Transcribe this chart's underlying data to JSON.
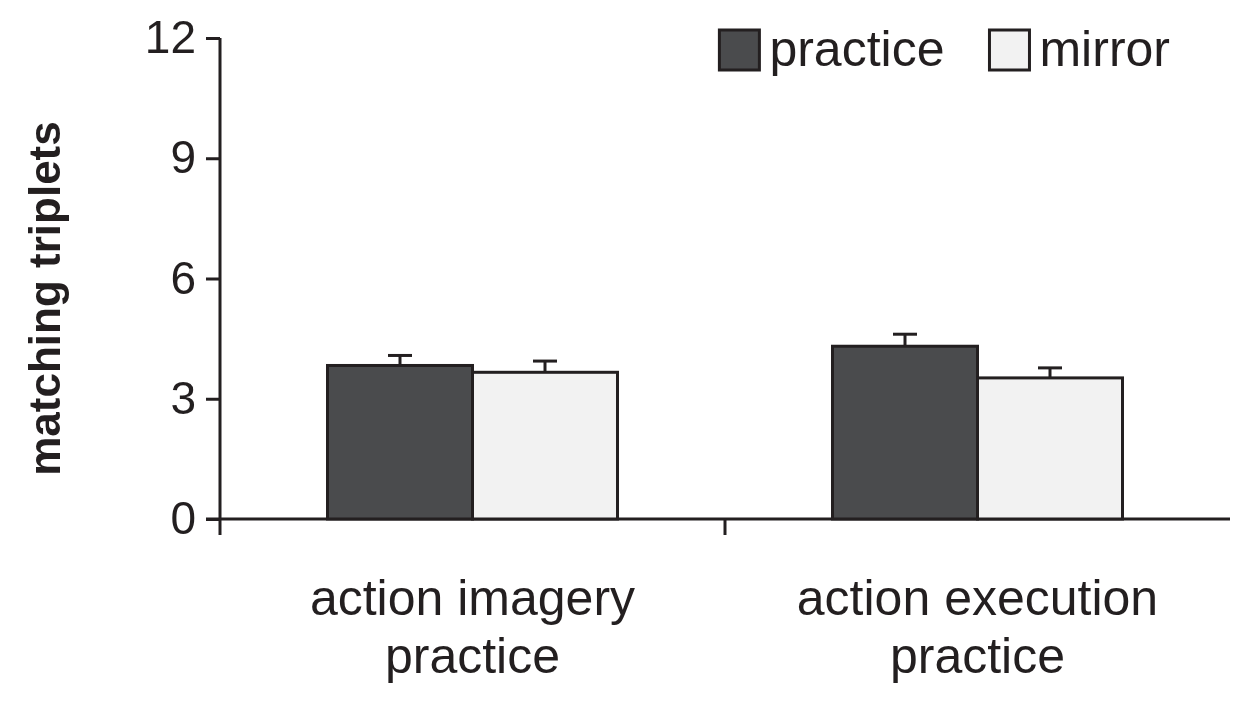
{
  "chart_data": {
    "type": "bar",
    "ylabel": "matching triplets",
    "categories": [
      "action imagery practice",
      "action execution practice"
    ],
    "series": [
      {
        "name": "practice",
        "color": "#4a4b4d",
        "values": [
          3.83,
          4.31
        ],
        "errors": [
          0.25,
          0.3
        ]
      },
      {
        "name": "mirror",
        "color": "#f2f2f2",
        "values": [
          3.66,
          3.52
        ],
        "errors": [
          0.28,
          0.25
        ]
      }
    ],
    "ylim": [
      0,
      12
    ],
    "yticks": [
      0,
      3,
      6,
      9,
      12
    ],
    "legend": "top right",
    "grid": false
  }
}
